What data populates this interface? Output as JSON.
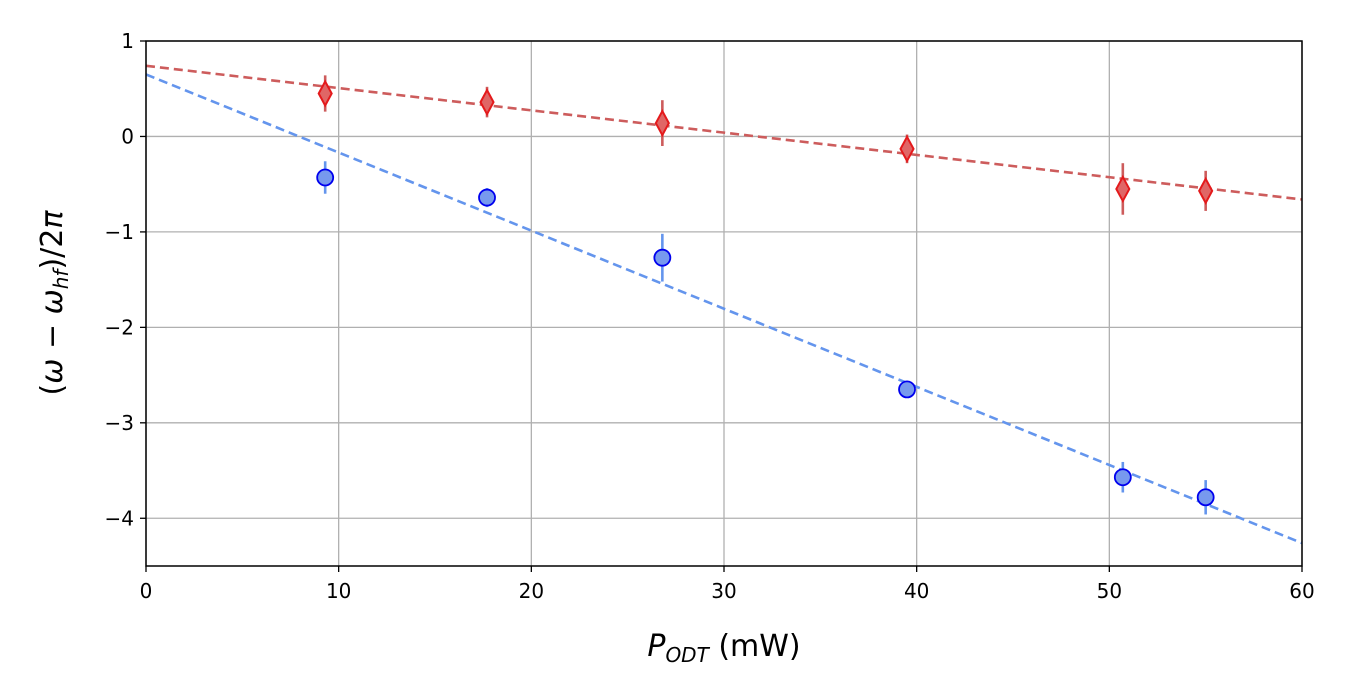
{
  "chart_data": {
    "type": "scatter",
    "title": "",
    "xlabel": {
      "symbol": "P",
      "subscript": "ODT",
      "unit": " (mW)"
    },
    "ylabel": {
      "open": "(",
      "omega": "ω",
      "minus": " − ",
      "omega2": "ω",
      "subscript": "hf",
      "close": ")/2",
      "pi": "π"
    },
    "xlim": [
      0,
      60
    ],
    "ylim": [
      -4.5,
      1
    ],
    "xticks": [
      0,
      10,
      20,
      30,
      40,
      50,
      60
    ],
    "yticks": [
      1,
      0,
      -1,
      -2,
      -3,
      -4
    ],
    "grid": true,
    "legend": "none",
    "series": [
      {
        "marker": "diamond",
        "color": "#e41a1c",
        "fill": "#e06666",
        "points": [
          {
            "x": 9.3,
            "y": 0.45,
            "err": 0.19
          },
          {
            "x": 17.7,
            "y": 0.36,
            "err": 0.16
          },
          {
            "x": 26.8,
            "y": 0.14,
            "err": 0.24
          },
          {
            "x": 39.5,
            "y": -0.13,
            "err": 0.15
          },
          {
            "x": 50.7,
            "y": -0.55,
            "err": 0.27
          },
          {
            "x": 55.0,
            "y": -0.57,
            "err": 0.21
          }
        ],
        "fit": {
          "x": [
            0,
            60
          ],
          "y": [
            0.74,
            -0.66
          ],
          "color": "#cd5c5c"
        }
      },
      {
        "marker": "circle",
        "color": "#0000ee",
        "fill": "#7799ee",
        "points": [
          {
            "x": 9.3,
            "y": -0.43,
            "err": 0.17
          },
          {
            "x": 17.7,
            "y": -0.64,
            "err": 0.1
          },
          {
            "x": 26.8,
            "y": -1.27,
            "err": 0.25
          },
          {
            "x": 39.5,
            "y": -2.65,
            "err": 0.06
          },
          {
            "x": 50.7,
            "y": -3.57,
            "err": 0.16
          },
          {
            "x": 55.0,
            "y": -3.78,
            "err": 0.18
          }
        ],
        "fit": {
          "x": [
            0,
            60
          ],
          "y": [
            0.65,
            -4.26
          ],
          "color": "#6495ed"
        }
      }
    ]
  }
}
